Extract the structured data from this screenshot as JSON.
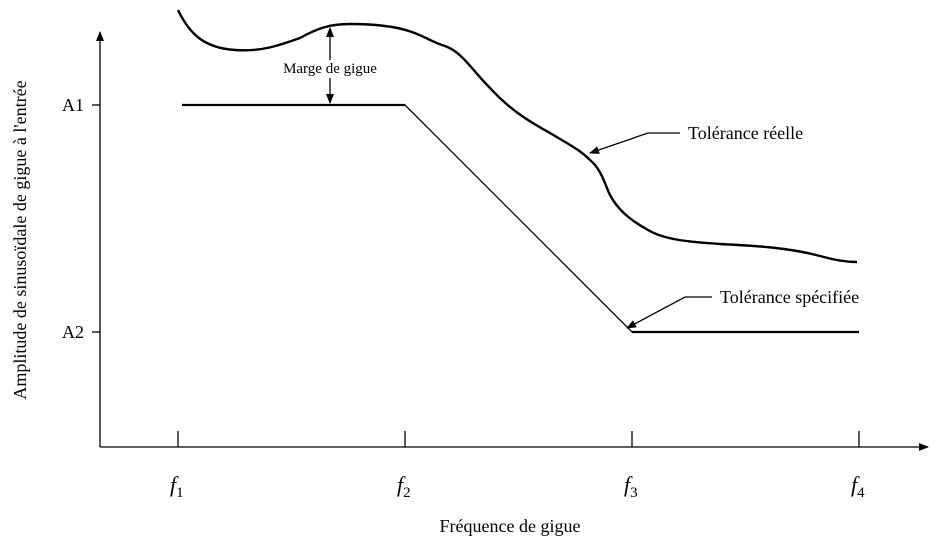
{
  "axes": {
    "y_label": "Amplitude de sinusoïdale de gigue à l'entrée",
    "x_label": "Fréquence de gigue",
    "y_ticks": [
      "A1",
      "A2"
    ],
    "x_ticks": [
      {
        "symbol": "f",
        "index": "1"
      },
      {
        "symbol": "f",
        "index": "2"
      },
      {
        "symbol": "f",
        "index": "3"
      },
      {
        "symbol": "f",
        "index": "4"
      }
    ]
  },
  "annotations": {
    "margin": "Marge de gigue",
    "actual": "Tolérance réelle",
    "specified": "Tolérance spécifiée"
  }
}
